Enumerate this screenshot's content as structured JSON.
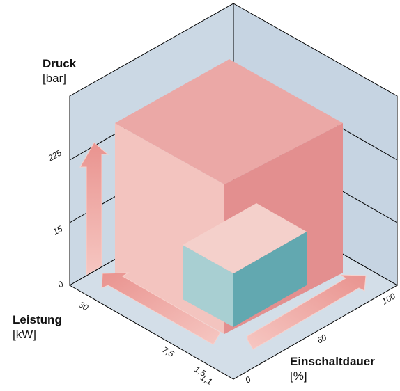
{
  "axes": {
    "pressure": {
      "title": "Druck",
      "unit": "[bar]",
      "ticks": [
        "0",
        "15",
        "225"
      ]
    },
    "power": {
      "title": "Leistung",
      "unit": "[kW]",
      "ticks": [
        "1,1",
        "1,5",
        "7,5",
        "30"
      ]
    },
    "duty": {
      "title": "Einschaltdauer",
      "unit": "[%]",
      "ticks": [
        "0",
        "60",
        "100"
      ]
    }
  },
  "colors": {
    "wall": "#cbd8e4",
    "large_box_front": "#f3c4bf",
    "large_box_top": "#eba8a6",
    "large_box_right": "#e38f8f",
    "small_box_front": "#a8cfd2",
    "small_box_top": "#f4d0cb",
    "small_box_right": "#62a8b0",
    "arrow": "#eea6a2"
  }
}
